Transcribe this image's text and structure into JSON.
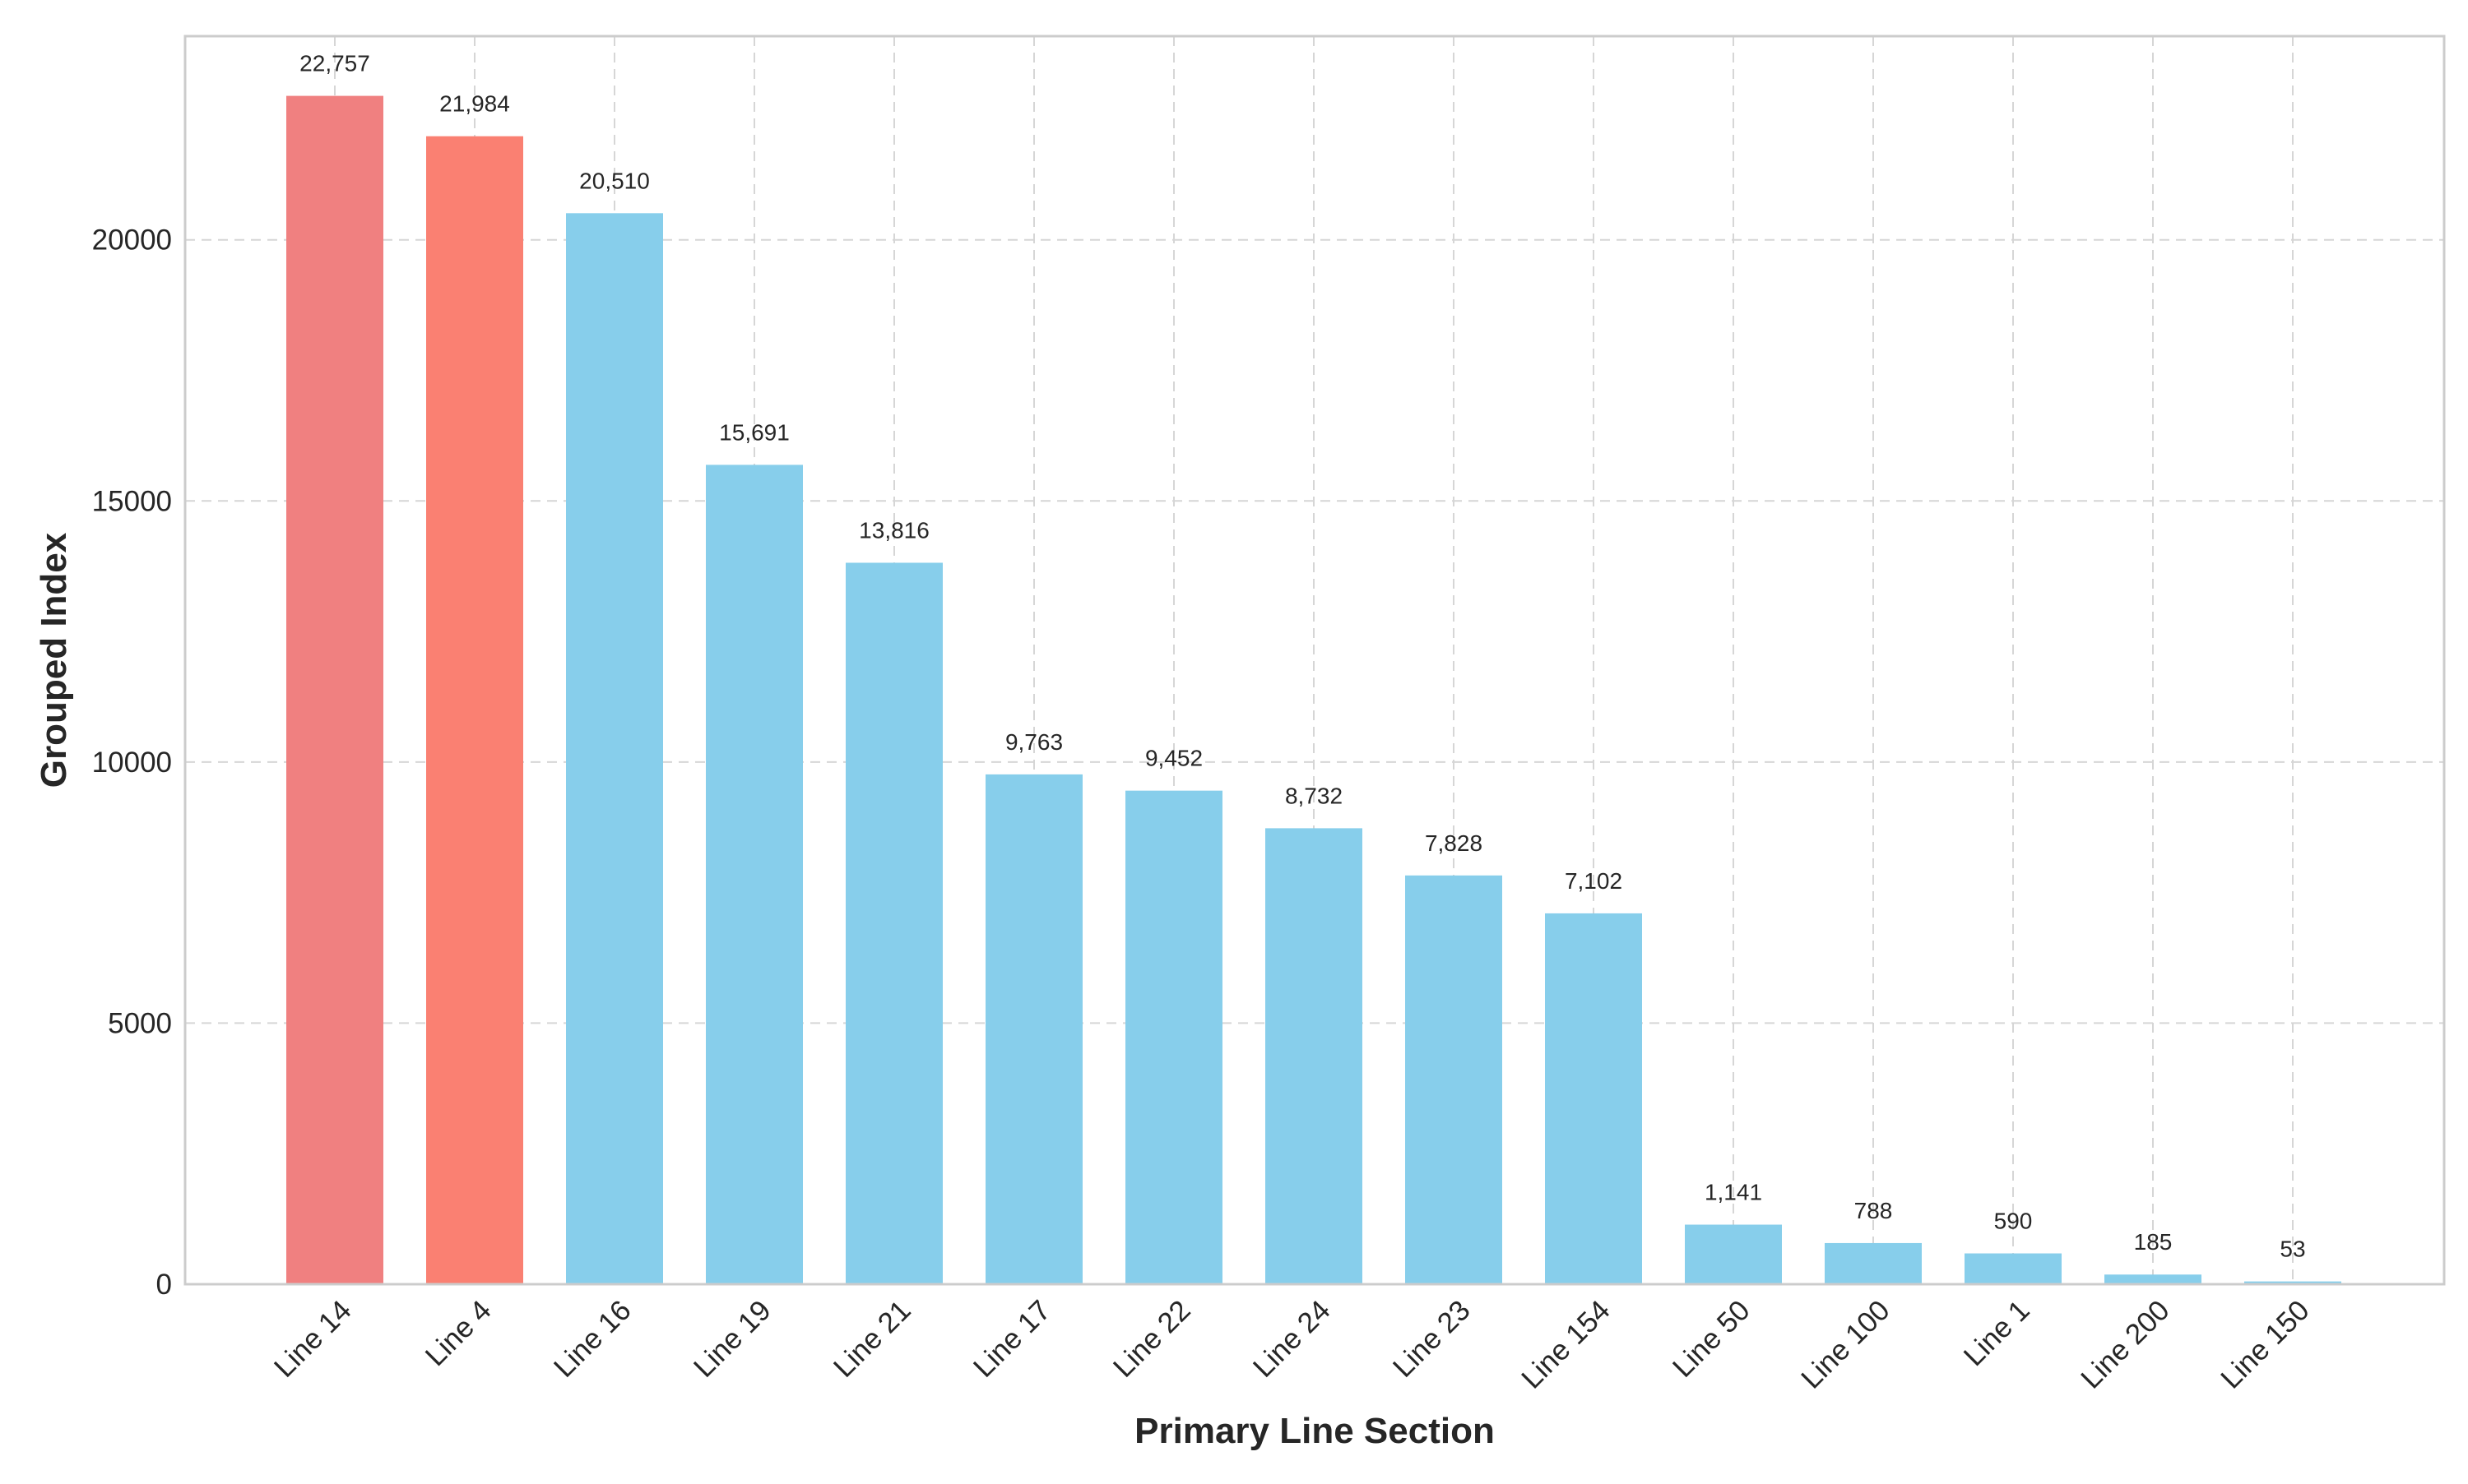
{
  "chart_data": {
    "type": "bar",
    "title": "",
    "xlabel": "Primary Line Section",
    "ylabel": "Grouped Index",
    "categories": [
      "Line 14",
      "Line 4",
      "Line 16",
      "Line 19",
      "Line 21",
      "Line 17",
      "Line 22",
      "Line 24",
      "Line 23",
      "Line 154",
      "Line 50",
      "Line 100",
      "Line 1",
      "Line 200",
      "Line 150"
    ],
    "values": [
      22757,
      21984,
      20510,
      15691,
      13816,
      9763,
      9452,
      8732,
      7828,
      7102,
      1141,
      788,
      590,
      185,
      53
    ],
    "value_labels": [
      "22,757",
      "21,984",
      "20,510",
      "15,691",
      "13,816",
      "9,763",
      "9,452",
      "8,732",
      "7,828",
      "7,102",
      "1,141",
      "788",
      "590",
      "185",
      "53"
    ],
    "bar_colors": [
      "#f08080",
      "#fa8072",
      "#87ceeb",
      "#87ceeb",
      "#87ceeb",
      "#87ceeb",
      "#87ceeb",
      "#87ceeb",
      "#87ceeb",
      "#87ceeb",
      "#87ceeb",
      "#87ceeb",
      "#87ceeb",
      "#87ceeb",
      "#87ceeb"
    ],
    "ylim": [
      0,
      23900
    ],
    "yticks": [
      0,
      5000,
      10000,
      15000,
      20000
    ],
    "ytick_labels": [
      "0",
      "5000",
      "10000",
      "15000",
      "20000"
    ],
    "grid": true,
    "legend": "none"
  }
}
